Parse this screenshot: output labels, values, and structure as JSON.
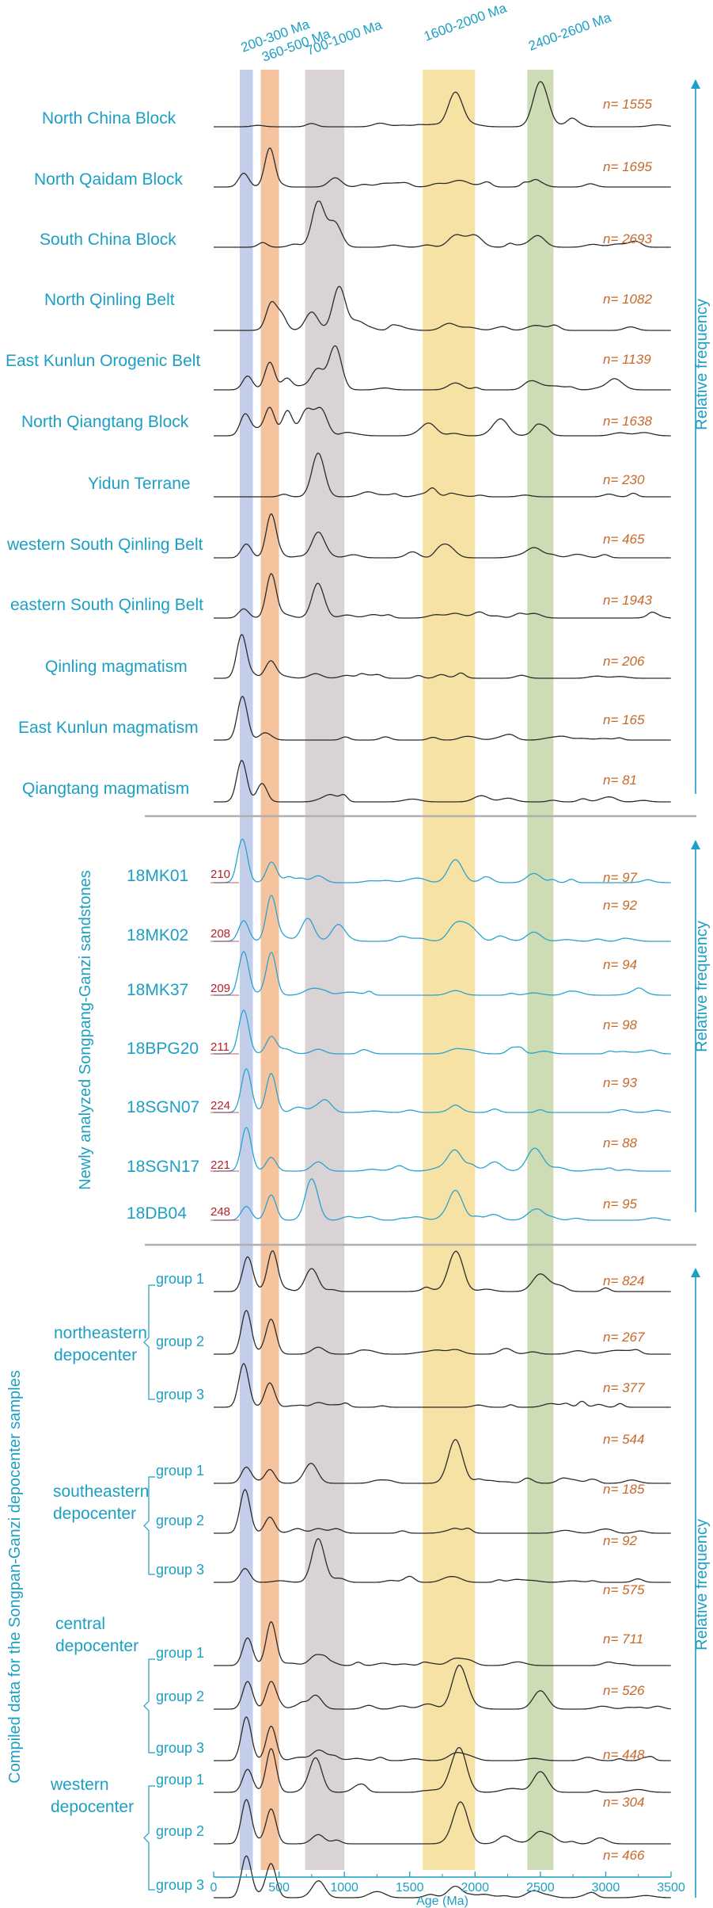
{
  "chart_data": {
    "type": "line",
    "xlabel": "Age (Ma)",
    "xlim": [
      0,
      3500
    ],
    "xticks": [
      0,
      500,
      1000,
      1500,
      2000,
      2500,
      3000,
      3500
    ],
    "ylabel_sections": [
      "Relative frequency",
      "Relative frequency",
      "Relative frequency"
    ],
    "bands": [
      {
        "label": "200-300 Ma",
        "range": [
          200,
          300
        ],
        "color": "#c3cfea"
      },
      {
        "label": "360-500 Ma",
        "range": [
          360,
          500
        ],
        "color": "#f6c39f"
      },
      {
        "label": "700-1000 Ma",
        "range": [
          700,
          1000
        ],
        "color": "#d9d3d6"
      },
      {
        "label": "1600-2000 Ma",
        "range": [
          1600,
          2000
        ],
        "color": "#f7e2a5"
      },
      {
        "label": "2400-2600 Ma",
        "range": [
          2400,
          2600
        ],
        "color": "#cddcb5"
      }
    ],
    "sections": [
      {
        "title": "",
        "series": [
          {
            "name": "North China Block",
            "n": "n= 1555",
            "peaks": [
              [
                1850,
                0.75
              ],
              [
                2500,
                0.9
              ]
            ]
          },
          {
            "name": "North Qaidam Block",
            "n": "n= 1695",
            "peaks": [
              [
                230,
                0.3
              ],
              [
                430,
                0.85
              ],
              [
                930,
                0.2
              ],
              [
                1850,
                0.1
              ],
              [
                2450,
                0.1
              ]
            ]
          },
          {
            "name": "South China Block",
            "n": "n= 2693",
            "peaks": [
              [
                800,
                0.95
              ],
              [
                920,
                0.5
              ],
              [
                1850,
                0.25
              ],
              [
                2000,
                0.25
              ],
              [
                2480,
                0.25
              ]
            ]
          },
          {
            "name": "North Qinling Belt",
            "n": "n= 1082",
            "peaks": [
              [
                440,
                0.5
              ],
              [
                520,
                0.3
              ],
              [
                750,
                0.4
              ],
              [
                960,
                0.95
              ],
              [
                1100,
                0.2
              ],
              [
                1800,
                0.15
              ],
              [
                2450,
                0.1
              ]
            ]
          },
          {
            "name": "East Kunlun Orogenic Belt",
            "n": "n= 1139",
            "peaks": [
              [
                260,
                0.3
              ],
              [
                430,
                0.6
              ],
              [
                560,
                0.25
              ],
              [
                800,
                0.35
              ],
              [
                930,
                0.95
              ],
              [
                1850,
                0.15
              ],
              [
                2450,
                0.15
              ]
            ]
          },
          {
            "name": "North Qiangtang Block",
            "n": "n= 1638",
            "peaks": [
              [
                240,
                0.45
              ],
              [
                430,
                0.6
              ],
              [
                560,
                0.45
              ],
              [
                710,
                0.55
              ],
              [
                820,
                0.5
              ],
              [
                1650,
                0.25
              ],
              [
                2200,
                0.35
              ],
              [
                2500,
                0.2
              ]
            ]
          },
          {
            "name": "Yidun Terrane",
            "n": "n= 230",
            "peaks": [
              [
                800,
                0.95
              ],
              [
                1850,
                0.05
              ]
            ]
          },
          {
            "name": "western South Qinling Belt",
            "n": "n= 465",
            "peaks": [
              [
                250,
                0.3
              ],
              [
                440,
                0.95
              ],
              [
                800,
                0.55
              ],
              [
                1800,
                0.2
              ],
              [
                2450,
                0.2
              ]
            ]
          },
          {
            "name": "eastern South Qinling Belt",
            "n": "n= 1943",
            "peaks": [
              [
                230,
                0.2
              ],
              [
                440,
                0.95
              ],
              [
                800,
                0.7
              ],
              [
                1850,
                0.1
              ],
              [
                2450,
                0.1
              ]
            ]
          },
          {
            "name": "Qinling magmatism",
            "n": "n= 206",
            "peaks": [
              [
                215,
                0.95
              ],
              [
                440,
                0.3
              ],
              [
                780,
                0.1
              ]
            ]
          },
          {
            "name": "East Kunlun magmatism",
            "n": "n= 165",
            "peaks": [
              [
                220,
                0.95
              ],
              [
                380,
                0.1
              ]
            ]
          },
          {
            "name": "Qiangtang magmatism",
            "n": "n= 81",
            "peaks": [
              [
                215,
                0.9
              ],
              [
                370,
                0.4
              ]
            ]
          }
        ]
      },
      {
        "title": "Newly analyzed Songpang-Ganzi sandstones",
        "series": [
          {
            "name": "18MK01",
            "min_age": "210",
            "n": "n= 97",
            "peaks": [
              [
                220,
                0.95
              ],
              [
                440,
                0.4
              ],
              [
                800,
                0.15
              ],
              [
                1850,
                0.5
              ],
              [
                2450,
                0.2
              ]
            ]
          },
          {
            "name": "18MK02",
            "min_age": "208",
            "n": "n= 92",
            "peaks": [
              [
                230,
                0.45
              ],
              [
                440,
                0.95
              ],
              [
                720,
                0.5
              ],
              [
                950,
                0.3
              ],
              [
                1850,
                0.35
              ],
              [
                1950,
                0.3
              ],
              [
                2450,
                0.2
              ]
            ]
          },
          {
            "name": "18MK37",
            "min_age": "209",
            "n": "n= 94",
            "peaks": [
              [
                230,
                0.95
              ],
              [
                440,
                0.9
              ],
              [
                800,
                0.1
              ],
              [
                1850,
                0.1
              ],
              [
                2450,
                0.05
              ]
            ]
          },
          {
            "name": "18BPG20",
            "min_age": "211",
            "n": "n= 98",
            "peaks": [
              [
                230,
                0.95
              ],
              [
                440,
                0.35
              ],
              [
                800,
                0.1
              ],
              [
                1850,
                0.1
              ]
            ]
          },
          {
            "name": "18SGN07",
            "min_age": "224",
            "n": "n= 93",
            "peaks": [
              [
                250,
                0.95
              ],
              [
                440,
                0.85
              ],
              [
                800,
                0.15
              ],
              [
                1850,
                0.1
              ]
            ]
          },
          {
            "name": "18SGN17",
            "min_age": "221",
            "n": "n= 88",
            "peaks": [
              [
                250,
                0.95
              ],
              [
                440,
                0.3
              ],
              [
                800,
                0.2
              ],
              [
                1850,
                0.4
              ],
              [
                2450,
                0.4
              ],
              [
                2150,
                0.2
              ]
            ]
          },
          {
            "name": "18DB04",
            "min_age": "248",
            "n": "n= 95",
            "peaks": [
              [
                250,
                0.3
              ],
              [
                440,
                0.55
              ],
              [
                750,
                0.9
              ],
              [
                1850,
                0.65
              ],
              [
                2450,
                0.2
              ]
            ]
          }
        ]
      },
      {
        "title": "Compiled data for the Songpan-Ganzi depocenter samples",
        "groups": [
          {
            "name": "northeastern depocenter",
            "series": [
              {
                "name": "group 1",
                "n": "n= 824",
                "peaks": [
                  [
                    260,
                    0.75
                  ],
                  [
                    450,
                    0.8
                  ],
                  [
                    750,
                    0.5
                  ],
                  [
                    1850,
                    0.85
                  ],
                  [
                    2500,
                    0.3
                  ]
                ]
              },
              {
                "name": "group 2",
                "n": "n= 267",
                "peaks": [
                  [
                    250,
                    0.95
                  ],
                  [
                    440,
                    0.75
                  ],
                  [
                    800,
                    0.15
                  ],
                  [
                    1850,
                    0.1
                  ]
                ]
              },
              {
                "name": "group 3",
                "n": "n= 377",
                "peaks": [
                  [
                    230,
                    0.95
                  ],
                  [
                    430,
                    0.5
                  ],
                  [
                    800,
                    0.1
                  ]
                ]
              }
            ]
          },
          {
            "name": "southeastern depocenter",
            "series": [
              {
                "name": "group 1",
                "n": "n= 544",
                "peaks": [
                  [
                    250,
                    0.35
                  ],
                  [
                    430,
                    0.3
                  ],
                  [
                    750,
                    0.4
                  ],
                  [
                    1850,
                    0.95
                  ]
                ]
              },
              {
                "name": "group 2",
                "n": "n= 185",
                "peaks": [
                  [
                    240,
                    0.95
                  ],
                  [
                    430,
                    0.35
                  ],
                  [
                    800,
                    0.1
                  ]
                ]
              },
              {
                "name": "group 3",
                "n": "n= 92",
                "peaks": [
                  [
                    240,
                    0.3
                  ],
                  [
                    800,
                    0.95
                  ],
                  [
                    1850,
                    0.1
                  ]
                ]
              }
            ]
          },
          {
            "name": "central depocenter",
            "series": [
              {
                "name": "group 1",
                "n": "n= 575",
                "peaks": [
                  [
                    260,
                    0.6
                  ],
                  [
                    440,
                    0.95
                  ],
                  [
                    780,
                    0.2
                  ],
                  [
                    1850,
                    0.15
                  ]
                ]
              },
              {
                "name": "group 2",
                "n": "n= 711",
                "peaks": [
                  [
                    260,
                    0.6
                  ],
                  [
                    440,
                    0.6
                  ],
                  [
                    780,
                    0.3
                  ],
                  [
                    1880,
                    0.95
                  ],
                  [
                    2500,
                    0.4
                  ]
                ]
              },
              {
                "name": "group 3",
                "n": "n= 526",
                "peaks": [
                  [
                    250,
                    0.95
                  ],
                  [
                    440,
                    0.75
                  ],
                  [
                    800,
                    0.2
                  ],
                  [
                    1850,
                    0.15
                  ]
                ]
              }
            ]
          },
          {
            "name": "western depocenter",
            "series": [
              {
                "name": "group 1",
                "n": "n= 448",
                "peaks": [
                  [
                    260,
                    0.5
                  ],
                  [
                    440,
                    0.95
                  ],
                  [
                    780,
                    0.75
                  ],
                  [
                    1880,
                    0.85
                  ],
                  [
                    2500,
                    0.45
                  ]
                ]
              },
              {
                "name": "group 2",
                "n": "n= 304",
                "peaks": [
                  [
                    250,
                    0.95
                  ],
                  [
                    440,
                    0.75
                  ],
                  [
                    800,
                    0.2
                  ],
                  [
                    1890,
                    0.9
                  ],
                  [
                    2500,
                    0.2
                  ]
                ]
              },
              {
                "name": "group 3",
                "n": "n= 466",
                "peaks": [
                  [
                    250,
                    0.9
                  ],
                  [
                    440,
                    0.7
                  ],
                  [
                    800,
                    0.3
                  ],
                  [
                    1850,
                    0.25
                  ],
                  [
                    2450,
                    0.15
                  ]
                ]
              }
            ]
          }
        ]
      }
    ]
  }
}
